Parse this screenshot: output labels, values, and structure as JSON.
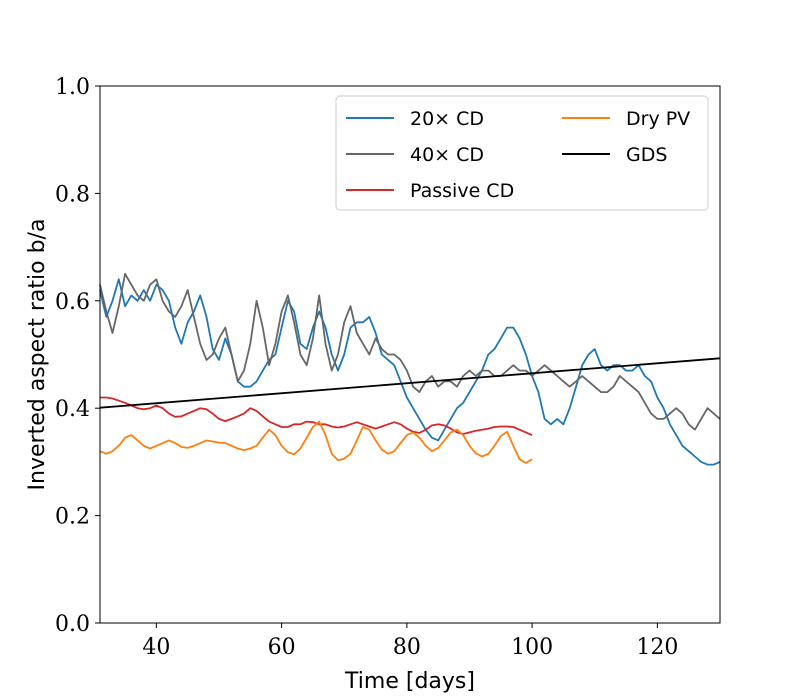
{
  "chart_data": {
    "type": "line",
    "title": "",
    "xlabel": "Time [days]",
    "ylabel": "Inverted aspect ratio b/a",
    "xlim": [
      31,
      130
    ],
    "ylim": [
      0.0,
      1.0
    ],
    "xticks": [
      40,
      60,
      80,
      100,
      120
    ],
    "xtick_labels": [
      "40",
      "60",
      "80",
      "100",
      "120"
    ],
    "yticks": [
      0.0,
      0.2,
      0.4,
      0.6,
      0.8,
      1.0
    ],
    "ytick_labels": [
      "0.0",
      "0.2",
      "0.4",
      "0.6",
      "0.8",
      "1.0"
    ],
    "grid": false,
    "legend_position": "top-right",
    "legend_columns": 2,
    "series": [
      {
        "name": "20× CD",
        "color": "#1f77b4",
        "x": [
          31,
          32,
          33,
          34,
          35,
          36,
          37,
          38,
          39,
          40,
          41,
          42,
          43,
          44,
          45,
          46,
          47,
          48,
          49,
          50,
          51,
          52,
          53,
          54,
          55,
          56,
          57,
          58,
          59,
          60,
          61,
          62,
          63,
          64,
          65,
          66,
          67,
          68,
          69,
          70,
          71,
          72,
          73,
          74,
          75,
          76,
          77,
          78,
          79,
          80,
          81,
          82,
          83,
          84,
          85,
          86,
          87,
          88,
          89,
          90,
          91,
          92,
          93,
          94,
          95,
          96,
          97,
          98,
          99,
          100,
          101,
          102,
          103,
          104,
          105,
          106,
          107,
          108,
          109,
          110,
          111,
          112,
          113,
          114,
          115,
          116,
          117,
          118,
          119,
          120,
          121,
          122,
          123,
          124,
          125,
          126,
          127,
          128,
          129,
          130
        ],
        "y": [
          0.62,
          0.57,
          0.6,
          0.64,
          0.59,
          0.61,
          0.6,
          0.62,
          0.6,
          0.63,
          0.62,
          0.6,
          0.55,
          0.52,
          0.56,
          0.58,
          0.61,
          0.57,
          0.51,
          0.49,
          0.53,
          0.5,
          0.45,
          0.44,
          0.44,
          0.45,
          0.47,
          0.49,
          0.5,
          0.55,
          0.6,
          0.58,
          0.52,
          0.51,
          0.55,
          0.58,
          0.55,
          0.5,
          0.47,
          0.5,
          0.55,
          0.56,
          0.56,
          0.57,
          0.54,
          0.5,
          0.49,
          0.48,
          0.45,
          0.42,
          0.4,
          0.38,
          0.36,
          0.345,
          0.34,
          0.36,
          0.38,
          0.4,
          0.41,
          0.43,
          0.45,
          0.47,
          0.5,
          0.51,
          0.53,
          0.55,
          0.55,
          0.53,
          0.5,
          0.46,
          0.43,
          0.38,
          0.37,
          0.38,
          0.37,
          0.4,
          0.44,
          0.48,
          0.5,
          0.51,
          0.48,
          0.47,
          0.48,
          0.48,
          0.47,
          0.47,
          0.48,
          0.46,
          0.45,
          0.42,
          0.4,
          0.37,
          0.35,
          0.33,
          0.32,
          0.31,
          0.3,
          0.295,
          0.295,
          0.3
        ]
      },
      {
        "name": "40× CD",
        "color": "#666666",
        "x": [
          31,
          32,
          33,
          34,
          35,
          36,
          37,
          38,
          39,
          40,
          41,
          42,
          43,
          44,
          45,
          46,
          47,
          48,
          49,
          50,
          51,
          52,
          53,
          54,
          55,
          56,
          57,
          58,
          59,
          60,
          61,
          62,
          63,
          64,
          65,
          66,
          67,
          68,
          69,
          70,
          71,
          72,
          73,
          74,
          75,
          76,
          77,
          78,
          79,
          80,
          81,
          82,
          83,
          84,
          85,
          86,
          87,
          88,
          89,
          90,
          91,
          92,
          93,
          94,
          95,
          96,
          97,
          98,
          99,
          100,
          101,
          102,
          103,
          104,
          105,
          106,
          107,
          108,
          109,
          110,
          111,
          112,
          113,
          114,
          115,
          116,
          117,
          118,
          119,
          120,
          121,
          122,
          123,
          124,
          125,
          126,
          127,
          128,
          129,
          130
        ],
        "y": [
          0.63,
          0.58,
          0.54,
          0.59,
          0.65,
          0.63,
          0.61,
          0.6,
          0.63,
          0.64,
          0.6,
          0.58,
          0.57,
          0.59,
          0.62,
          0.57,
          0.52,
          0.49,
          0.5,
          0.53,
          0.55,
          0.5,
          0.45,
          0.47,
          0.52,
          0.6,
          0.55,
          0.48,
          0.52,
          0.58,
          0.61,
          0.56,
          0.5,
          0.48,
          0.53,
          0.61,
          0.52,
          0.47,
          0.5,
          0.56,
          0.59,
          0.54,
          0.52,
          0.5,
          0.53,
          0.51,
          0.5,
          0.5,
          0.49,
          0.47,
          0.44,
          0.43,
          0.45,
          0.46,
          0.44,
          0.45,
          0.45,
          0.44,
          0.46,
          0.47,
          0.46,
          0.47,
          0.47,
          0.46,
          0.46,
          0.47,
          0.48,
          0.47,
          0.47,
          0.46,
          0.47,
          0.48,
          0.47,
          0.46,
          0.45,
          0.44,
          0.45,
          0.46,
          0.45,
          0.44,
          0.43,
          0.43,
          0.44,
          0.46,
          0.45,
          0.44,
          0.43,
          0.41,
          0.39,
          0.38,
          0.38,
          0.39,
          0.4,
          0.39,
          0.37,
          0.36,
          0.38,
          0.4,
          0.39,
          0.38
        ]
      },
      {
        "name": "Passive CD",
        "color": "#d62728",
        "x": [
          31,
          32,
          33,
          34,
          35,
          36,
          37,
          38,
          39,
          40,
          41,
          42,
          43,
          44,
          45,
          46,
          47,
          48,
          49,
          50,
          51,
          52,
          53,
          54,
          55,
          56,
          57,
          58,
          59,
          60,
          61,
          62,
          63,
          64,
          65,
          66,
          67,
          68,
          69,
          70,
          71,
          72,
          73,
          74,
          75,
          76,
          77,
          78,
          79,
          80,
          81,
          82,
          83,
          84,
          85,
          86,
          87,
          88,
          89,
          90,
          91,
          92,
          93,
          94,
          95,
          96,
          97,
          98,
          99,
          100
        ],
        "y": [
          0.42,
          0.42,
          0.418,
          0.414,
          0.41,
          0.405,
          0.4,
          0.398,
          0.4,
          0.405,
          0.4,
          0.39,
          0.384,
          0.385,
          0.39,
          0.395,
          0.4,
          0.398,
          0.39,
          0.38,
          0.376,
          0.38,
          0.385,
          0.39,
          0.4,
          0.395,
          0.385,
          0.375,
          0.37,
          0.365,
          0.365,
          0.37,
          0.37,
          0.375,
          0.374,
          0.37,
          0.37,
          0.366,
          0.364,
          0.366,
          0.37,
          0.374,
          0.37,
          0.366,
          0.362,
          0.366,
          0.37,
          0.374,
          0.37,
          0.362,
          0.356,
          0.354,
          0.36,
          0.368,
          0.37,
          0.368,
          0.362,
          0.355,
          0.352,
          0.355,
          0.358,
          0.36,
          0.362,
          0.365,
          0.366,
          0.366,
          0.365,
          0.36,
          0.355,
          0.35
        ]
      },
      {
        "name": "Dry PV",
        "color": "#ff7f0e",
        "x": [
          31,
          32,
          33,
          34,
          35,
          36,
          37,
          38,
          39,
          40,
          41,
          42,
          43,
          44,
          45,
          46,
          47,
          48,
          49,
          50,
          51,
          52,
          53,
          54,
          55,
          56,
          57,
          58,
          59,
          60,
          61,
          62,
          63,
          64,
          65,
          66,
          67,
          68,
          69,
          70,
          71,
          72,
          73,
          74,
          75,
          76,
          77,
          78,
          79,
          80,
          81,
          82,
          83,
          84,
          85,
          86,
          87,
          88,
          89,
          90,
          91,
          92,
          93,
          94,
          95,
          96,
          97,
          98,
          99,
          100
        ],
        "y": [
          0.32,
          0.315,
          0.32,
          0.33,
          0.345,
          0.35,
          0.34,
          0.33,
          0.325,
          0.33,
          0.335,
          0.34,
          0.335,
          0.328,
          0.326,
          0.33,
          0.335,
          0.34,
          0.338,
          0.336,
          0.335,
          0.33,
          0.325,
          0.322,
          0.325,
          0.33,
          0.345,
          0.36,
          0.35,
          0.33,
          0.318,
          0.314,
          0.325,
          0.345,
          0.365,
          0.375,
          0.35,
          0.315,
          0.303,
          0.306,
          0.315,
          0.34,
          0.365,
          0.36,
          0.34,
          0.323,
          0.315,
          0.32,
          0.335,
          0.35,
          0.355,
          0.345,
          0.33,
          0.32,
          0.326,
          0.34,
          0.355,
          0.36,
          0.35,
          0.33,
          0.316,
          0.31,
          0.315,
          0.33,
          0.348,
          0.356,
          0.33,
          0.305,
          0.298,
          0.305
        ]
      },
      {
        "name": "GDS",
        "color": "#000000",
        "x": [
          31,
          130
        ],
        "y": [
          0.401,
          0.493
        ]
      }
    ]
  }
}
